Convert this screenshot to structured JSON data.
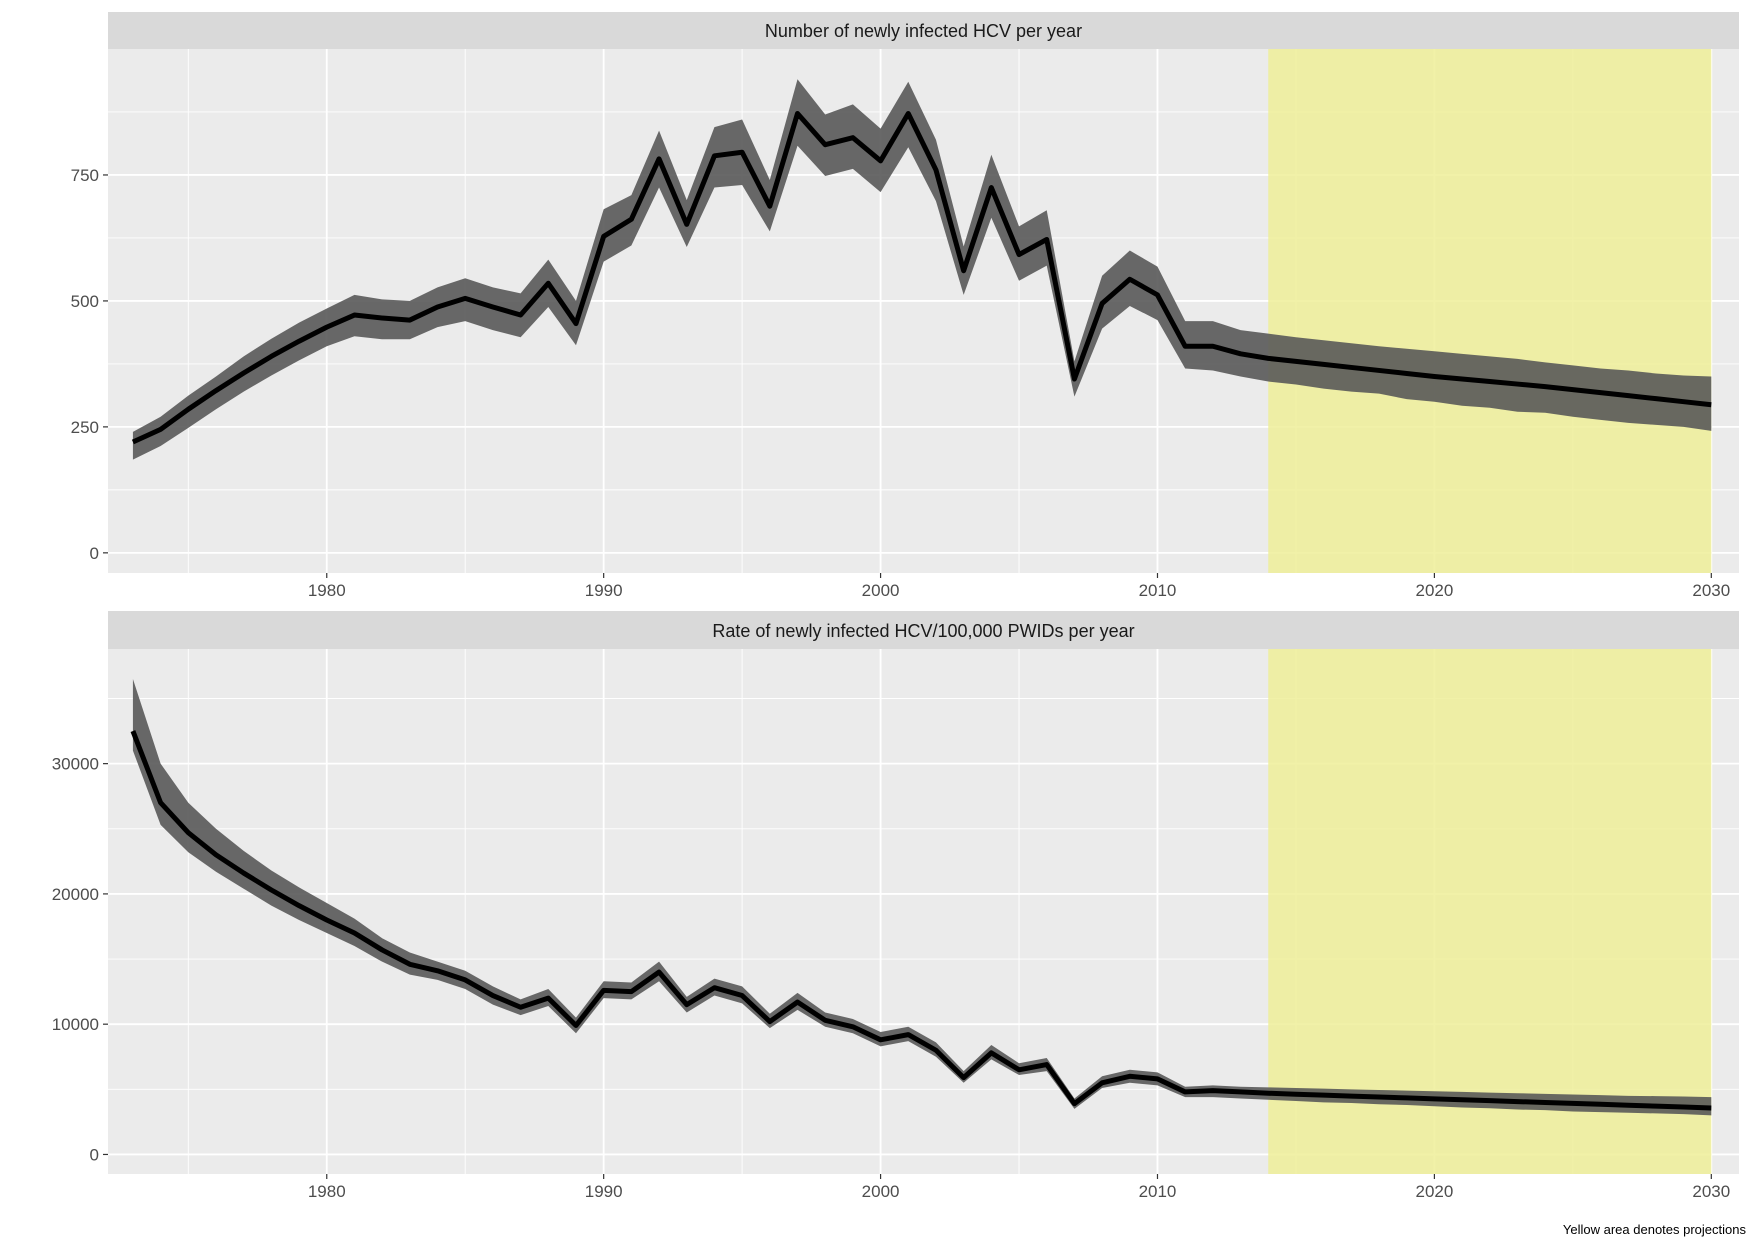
{
  "caption": "Yellow area denotes projections",
  "colors": {
    "panel_background": "#ebebeb",
    "strip_background": "#d9d9d9",
    "grid": "#ffffff",
    "ribbon": "#595959",
    "line": "#000000",
    "projection_area": "#eeee99"
  },
  "chart_data": [
    {
      "type": "line",
      "title": "Number of newly infected HCV per year",
      "xlabel": "",
      "ylabel": "",
      "xlim": [
        1972.1,
        2031
      ],
      "ylim": [
        -40,
        1000
      ],
      "x_ticks": [
        1980,
        1990,
        2000,
        2010,
        2020,
        2030
      ],
      "y_ticks": [
        0,
        250,
        500,
        750
      ],
      "grid": true,
      "projection_range": [
        2014,
        2030
      ],
      "series": [
        {
          "x": [
            1973,
            1974,
            1975,
            1976,
            1977,
            1978,
            1979,
            1980,
            1981,
            1982,
            1983,
            1984,
            1985,
            1986,
            1987,
            1988,
            1989,
            1990,
            1991,
            1992,
            1993,
            1994,
            1995,
            1996,
            1997,
            1998,
            1999,
            2000,
            2001,
            2002,
            2003,
            2004,
            2005,
            2006,
            2007,
            2008,
            2009,
            2010,
            2011,
            2012,
            2013,
            2014,
            2015,
            2016,
            2017,
            2018,
            2019,
            2020,
            2021,
            2022,
            2023,
            2024,
            2025,
            2026,
            2027,
            2028,
            2029,
            2030
          ],
          "values": [
            220,
            245,
            285,
            322,
            357,
            390,
            420,
            448,
            472,
            466,
            462,
            488,
            505,
            488,
            472,
            535,
            455,
            628,
            662,
            782,
            652,
            788,
            795,
            688,
            872,
            810,
            824,
            778,
            872,
            760,
            560,
            725,
            592,
            622,
            345,
            495,
            543,
            512,
            410,
            410,
            395,
            386,
            380,
            374,
            368,
            362,
            356,
            350,
            345,
            340,
            335,
            330,
            324,
            318,
            312,
            306,
            300,
            294
          ],
          "lower": [
            185,
            212,
            248,
            285,
            320,
            352,
            382,
            410,
            430,
            424,
            424,
            448,
            460,
            442,
            428,
            488,
            412,
            578,
            610,
            725,
            607,
            725,
            730,
            638,
            808,
            748,
            762,
            716,
            805,
            698,
            512,
            665,
            540,
            570,
            310,
            445,
            490,
            462,
            366,
            362,
            350,
            340,
            334,
            326,
            320,
            316,
            305,
            300,
            292,
            288,
            280,
            278,
            270,
            264,
            258,
            254,
            250,
            242
          ],
          "upper": [
            240,
            270,
            312,
            350,
            390,
            425,
            457,
            485,
            512,
            503,
            500,
            527,
            545,
            527,
            515,
            582,
            500,
            682,
            710,
            838,
            700,
            845,
            860,
            740,
            940,
            870,
            890,
            842,
            935,
            820,
            608,
            790,
            648,
            680,
            380,
            550,
            600,
            568,
            460,
            460,
            442,
            435,
            428,
            422,
            416,
            410,
            405,
            400,
            395,
            390,
            385,
            378,
            372,
            366,
            362,
            356,
            352,
            350
          ]
        }
      ]
    },
    {
      "type": "line",
      "title": "Rate of newly infected HCV/100,000 PWIDs per year",
      "xlabel": "",
      "ylabel": "",
      "xlim": [
        1972.1,
        2031
      ],
      "ylim": [
        -1500,
        38800
      ],
      "x_ticks": [
        1980,
        1990,
        2000,
        2010,
        2020,
        2030
      ],
      "y_ticks": [
        0,
        10000,
        20000,
        30000
      ],
      "grid": true,
      "projection_range": [
        2014,
        2030
      ],
      "series": [
        {
          "x": [
            1973,
            1974,
            1975,
            1976,
            1977,
            1978,
            1979,
            1980,
            1981,
            1982,
            1983,
            1984,
            1985,
            1986,
            1987,
            1988,
            1989,
            1990,
            1991,
            1992,
            1993,
            1994,
            1995,
            1996,
            1997,
            1998,
            1999,
            2000,
            2001,
            2002,
            2003,
            2004,
            2005,
            2006,
            2007,
            2008,
            2009,
            2010,
            2011,
            2012,
            2013,
            2014,
            2015,
            2016,
            2017,
            2018,
            2019,
            2020,
            2021,
            2022,
            2023,
            2024,
            2025,
            2026,
            2027,
            2028,
            2029,
            2030
          ],
          "values": [
            32500,
            27000,
            24700,
            23000,
            21600,
            20300,
            19100,
            18000,
            17000,
            15700,
            14600,
            14100,
            13400,
            12200,
            11300,
            12000,
            9900,
            12600,
            12500,
            14000,
            11500,
            12800,
            12200,
            10200,
            11700,
            10300,
            9800,
            8800,
            9200,
            8000,
            5900,
            7800,
            6500,
            6900,
            3900,
            5500,
            6000,
            5800,
            4800,
            4900,
            4800,
            4700,
            4620,
            4550,
            4480,
            4410,
            4340,
            4270,
            4200,
            4130,
            4060,
            3990,
            3920,
            3850,
            3780,
            3710,
            3640,
            3570
          ],
          "lower": [
            31000,
            25300,
            23200,
            21700,
            20400,
            19100,
            18000,
            17000,
            16000,
            14800,
            13800,
            13400,
            12700,
            11500,
            10700,
            11400,
            9300,
            12000,
            11900,
            13300,
            10900,
            12200,
            11600,
            9700,
            11100,
            9800,
            9300,
            8300,
            8700,
            7500,
            5500,
            7300,
            6100,
            6400,
            3500,
            5100,
            5500,
            5300,
            4400,
            4400,
            4300,
            4200,
            4100,
            4000,
            3950,
            3850,
            3800,
            3700,
            3600,
            3550,
            3450,
            3400,
            3300,
            3250,
            3200,
            3150,
            3100,
            3000
          ],
          "upper": [
            36500,
            30000,
            27000,
            25000,
            23300,
            21800,
            20500,
            19300,
            18100,
            16600,
            15500,
            14800,
            14100,
            12900,
            11900,
            12700,
            10500,
            13300,
            13200,
            14800,
            12100,
            13500,
            12900,
            10800,
            12400,
            10900,
            10400,
            9400,
            9800,
            8600,
            6400,
            8400,
            7000,
            7400,
            4300,
            6000,
            6500,
            6300,
            5200,
            5300,
            5200,
            5150,
            5100,
            5050,
            5000,
            4950,
            4900,
            4850,
            4800,
            4750,
            4700,
            4650,
            4600,
            4550,
            4500,
            4480,
            4450,
            4400
          ]
        }
      ]
    }
  ]
}
